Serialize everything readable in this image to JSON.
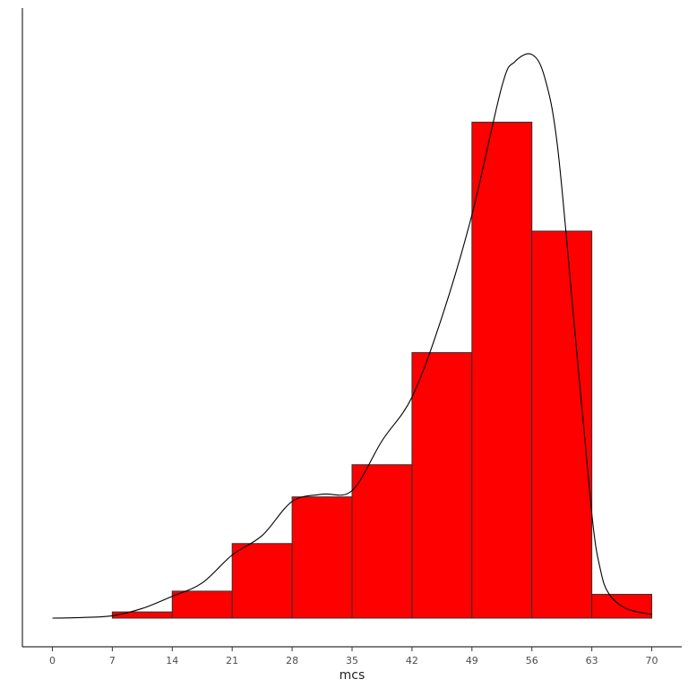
{
  "chart_data": {
    "type": "bar",
    "title": "",
    "xlabel": "mcs",
    "ylabel": "",
    "x_ticks": [
      0,
      7,
      14,
      21,
      28,
      35,
      42,
      49,
      56,
      63,
      70
    ],
    "xlim": [
      -3.5,
      73.5
    ],
    "ylim": [
      0,
      0.0486
    ],
    "bars": [
      {
        "x0": 7,
        "x1": 14,
        "value": 0.00051
      },
      {
        "x0": 14,
        "x1": 21,
        "value": 0.00222
      },
      {
        "x0": 21,
        "x1": 28,
        "value": 0.00614
      },
      {
        "x0": 28,
        "x1": 35,
        "value": 0.00998
      },
      {
        "x0": 35,
        "x1": 42,
        "value": 0.01263
      },
      {
        "x0": 42,
        "x1": 49,
        "value": 0.02186
      },
      {
        "x0": 49,
        "x1": 56,
        "value": 0.04083
      },
      {
        "x0": 56,
        "x1": 63,
        "value": 0.03186
      },
      {
        "x0": 63,
        "x1": 70,
        "value": 0.00196
      }
    ],
    "density": {
      "x": [
        0,
        3.5,
        7,
        10.5,
        14,
        17.5,
        21,
        24.5,
        28,
        31.5,
        35,
        38.5,
        42,
        45.5,
        49,
        52.5,
        54,
        56,
        57.5,
        59,
        61,
        63,
        64,
        65,
        67,
        70
      ],
      "y": [
        0.0,
        5e-05,
        0.0002,
        0.0008,
        0.0018,
        0.0029,
        0.0052,
        0.0068,
        0.0096,
        0.0102,
        0.0105,
        0.0146,
        0.0182,
        0.0248,
        0.0332,
        0.0438,
        0.0458,
        0.0464,
        0.0445,
        0.0388,
        0.0238,
        0.0086,
        0.004,
        0.002,
        0.0008,
        0.0003
      ]
    },
    "bar_color": "#ff0000",
    "bar_edge_color": "#333333",
    "line_color": "#000000",
    "grid": false,
    "legend": "none"
  }
}
